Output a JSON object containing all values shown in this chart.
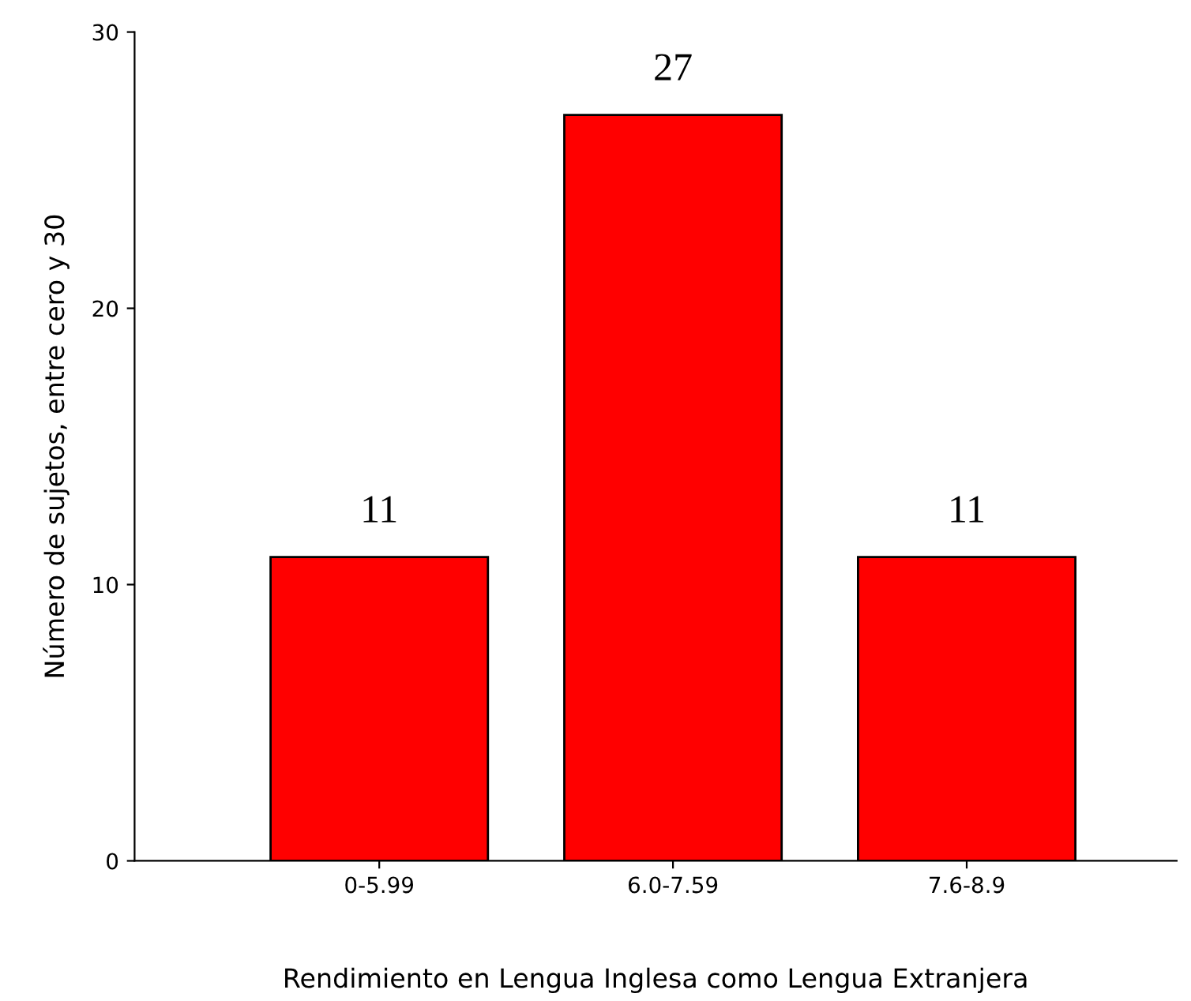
{
  "chart_data": {
    "type": "bar",
    "xlabel": "Rendimiento en Lengua Inglesa como Lengua Extranjera",
    "ylabel": "Número de sujetos, entre cero y 30",
    "categories": [
      "0-5.99",
      "6.0-7.59",
      "7.6-8.9"
    ],
    "values": [
      11,
      27,
      11
    ],
    "color": "#ff0000",
    "ylim": [
      0,
      30
    ],
    "yticks": [
      0,
      10,
      20,
      30
    ],
    "data_labels": true,
    "grid": false,
    "legend": false
  }
}
